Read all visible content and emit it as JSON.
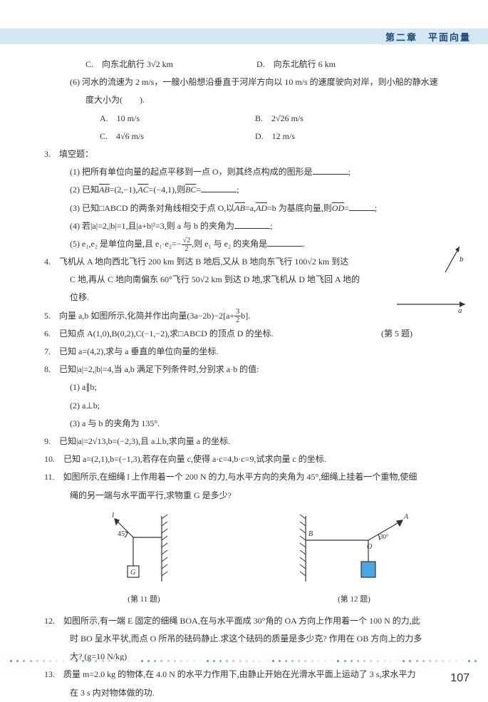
{
  "header": {
    "chapter": "第二章　平面向量"
  },
  "page_number": "107",
  "body": {
    "choiceC": "C.　向东北航行 3√2 km",
    "choiceD": "D.　向东北航行 6 km",
    "q6": "(6) 河水的流速为 2 m/s，一艘小船想沿垂直于河岸方向以 10 m/s 的速度驶向对岸，则小船的静水速",
    "q6b": "度大小为(　　).",
    "q6A": "A.　10 m/s",
    "q6B": "B.　2√26 m/s",
    "q6C": "C.　4√6 m/s",
    "q6D": "D.　12 m/s",
    "sec3": "3.　填空题：",
    "s3_1": "(1) 把所有单位向量的起点平移到一点 O，则其终点构成的图形是",
    "s3_2a": "(2) 已知",
    "s3_2b": "=(2,−1),",
    "s3_2c": "=(−4,1),则",
    "s3_3a": "(3) 已知□ABCD 的两条对角线相交于点 O,以",
    "s3_3b": "=a,",
    "s3_3c": "=b 为基底向量,则",
    "s3_4a": "(4) 若|a|=2,|b|=1,且|a+b|²=3,则 a 与 b 的夹角为",
    "s3_5a": "(5) e₁,e₂ 是单位向量,且 e₁·e₂=−",
    "s3_5b": ",则 e₁ 与 e₂ 的夹角是",
    "q4a": "4.　飞机从 A 地向西北飞行 200 km 到达 B 地后,又从 B 地向东飞行 100√2 km 到达",
    "q4b": "C 地,再从 C 地向南偏东 60°飞行 50√2 km 到达 D 地,求飞机从 D 地飞回 A 地的",
    "q4c": "位移.",
    "q5a": "5.　向量 a,b 如图所示,化简并作出向量(3a−2b)−2[a+",
    "q5b": "b].",
    "q5cap": "(第 5 题)",
    "q6t": "6.　已知点 A(1,0),B(0,2),C(−1,−2),求□ABCD 的顶点 D 的坐标.",
    "q7": "7.　已知 a=(4,2),求与 a 垂直的单位向量的坐标.",
    "q8": "8.　已知|a|=2,|b|=4,当 a,b 满足下列条件时,分别求 a·b 的值:",
    "q8_1": "(1) a∥b;",
    "q8_2": "(2) a⊥b;",
    "q8_3": "(3) a 与 b 的夹角为 135°.",
    "q9": "9.　已知|a|=2√13,b=(−2,3),且 a⊥b,求向量 a 的坐标.",
    "q10": "10.　已知 a=(2,1),b=(−1,3),若存在向量 c,使得 a·c=4,b·c=9,试求向量 c 的坐标.",
    "q11a": "11.　如图所示,在细绳 l 上作用着一个 200 N 的力,与水平方向的夹角为 45°,细绳上挂着一个重物,使细",
    "q11b": "绳的另一端与水平面平行,求物重 G 是多少?",
    "fig11cap": "(第 11 题)",
    "fig12cap": "(第 12 题)",
    "q12a": "12.　如图所示,有一端 E 固定的细绳 BOA,在与水平面成 30°角的 OA 方向上作用着一个 100 N 的力,此",
    "q12b": "时 BO 呈水平状,而点 O 所吊的砝码静止.求这个砝码的质量是多少克? 作用在 OB 方向上的力多",
    "q12c": "大? (g=10 N/kg)",
    "q13a": "13.　质量 m=2.0 kg 的物体,在 4.0 N 的水平力作用下,由静止开始在光滑水平面上运动了 3 s,求水平力",
    "q13b": "在 3 s 内对物体做的功."
  },
  "figures": {
    "fig4": {
      "label_b": "b",
      "stroke": "#333333"
    },
    "fig5": {
      "label_a": "a",
      "stroke": "#333333"
    },
    "fig11": {
      "angle": "45°",
      "label_l": "l",
      "label_G": "G",
      "stroke": "#333333",
      "hatch": "#333333"
    },
    "fig12": {
      "angle": "30°",
      "label_A": "A",
      "label_B": "B",
      "label_O": "O",
      "stroke": "#333333",
      "box_fill": "#4aa8e0",
      "hatch": "#333333"
    }
  },
  "dots": {
    "colors": [
      "#5a8fc4",
      "#6aa0d0",
      "#7ab0da",
      "#8cbee2",
      "#9ecbe8",
      "#b0d6ee",
      "#c2e0f2",
      "#d2e8f6",
      "#e0eef8",
      "#ecf4fa"
    ],
    "count": 72
  }
}
